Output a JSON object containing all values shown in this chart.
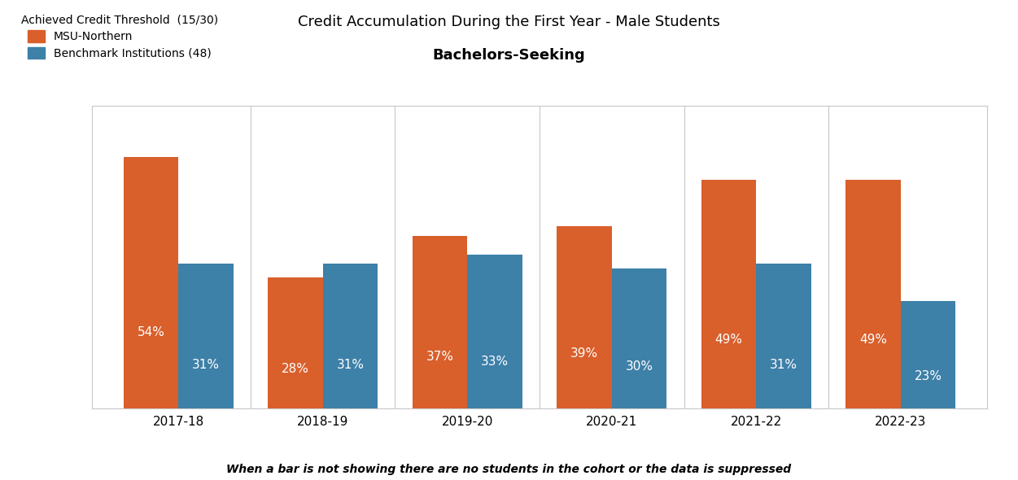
{
  "title1": "Credit Accumulation During the First Year - Male Students",
  "title2": "Bachelors-Seeking",
  "legend_title": "Achieved Credit Threshold  (15/30)",
  "legend_entries": [
    "MSU-Northern",
    "Benchmark Institutions (48)"
  ],
  "categories": [
    "2017-18",
    "2018-19",
    "2019-20",
    "2020-21",
    "2021-22",
    "2022-23"
  ],
  "msu_values": [
    54,
    28,
    37,
    39,
    49,
    49
  ],
  "benchmark_values": [
    31,
    31,
    33,
    30,
    31,
    23
  ],
  "msu_color": "#D95F2B",
  "benchmark_color": "#3D80A8",
  "bar_width": 0.38,
  "footnote": "When a bar is not showing there are no students in the cohort or the data is suppressed",
  "ylim": [
    0,
    65
  ],
  "background_color": "#ffffff",
  "spine_color": "#c8c8c8"
}
